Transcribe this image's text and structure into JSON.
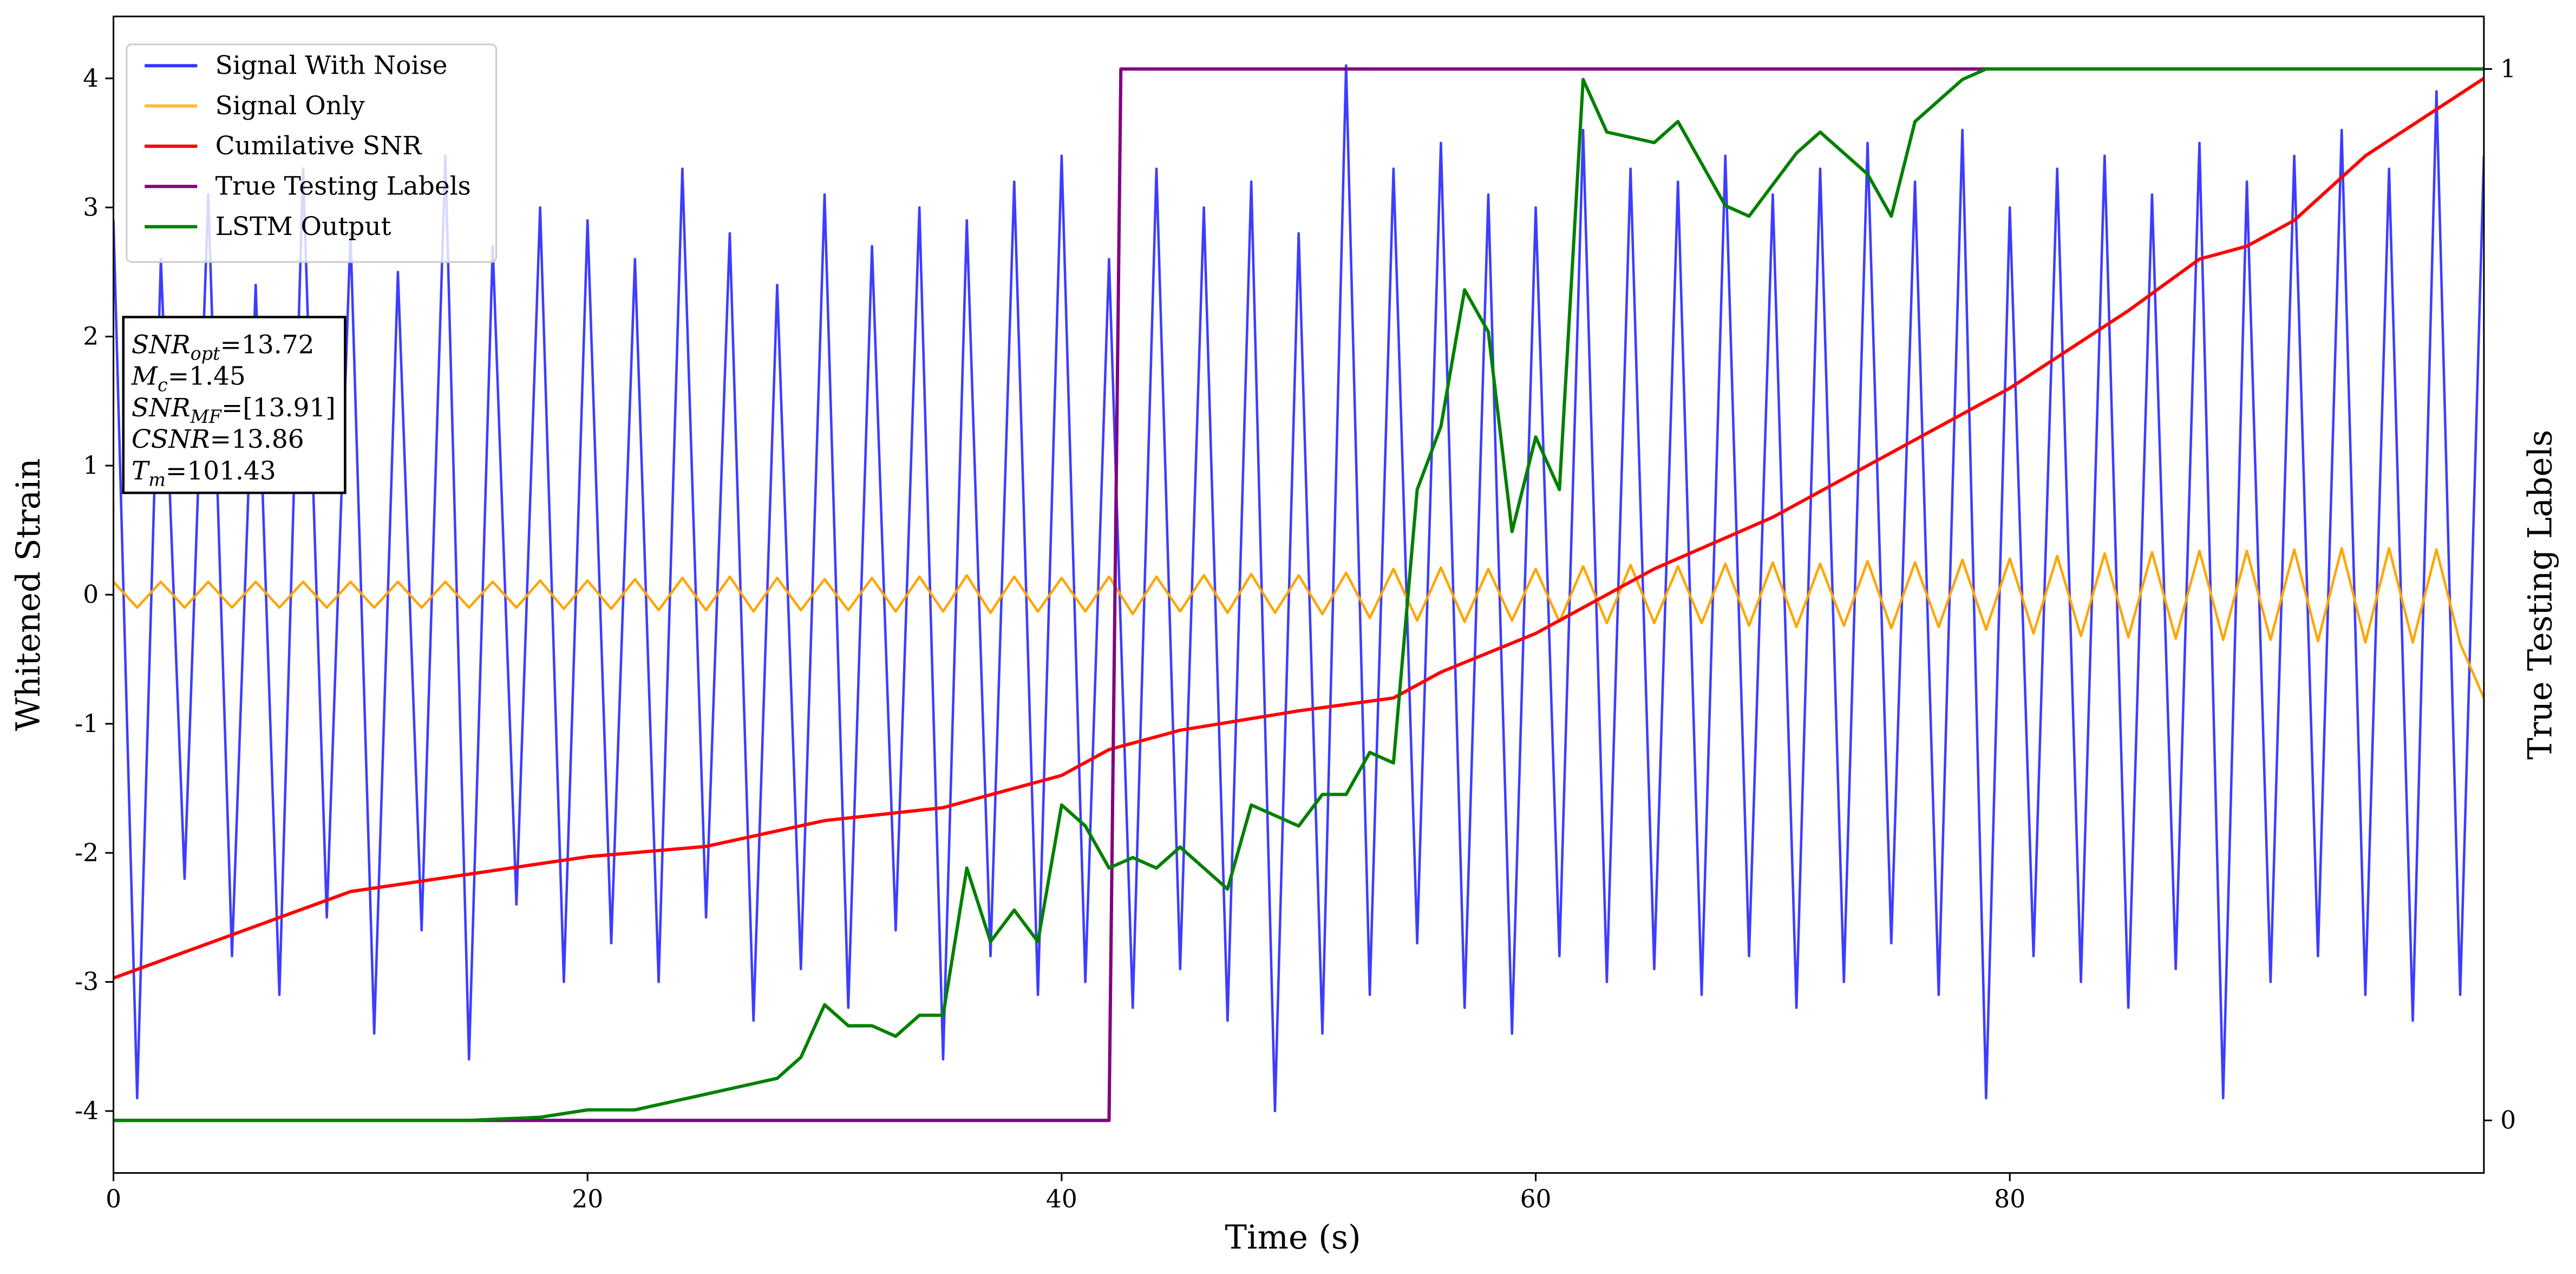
{
  "chart_data": {
    "type": "line",
    "xlabel": "Time (s)",
    "ylabel": "Whitened Strain",
    "y2label": "True Testing Labels",
    "xlim": [
      0,
      100
    ],
    "ylim": [
      -4.48,
      4.48
    ],
    "y2lim": [
      -0.05,
      1.05
    ],
    "xticks": [
      0,
      20,
      40,
      60,
      80
    ],
    "yticks": [
      -4,
      -3,
      -2,
      -1,
      0,
      1,
      2,
      3,
      4
    ],
    "y2ticks": [
      0,
      1
    ],
    "legend": "upper left",
    "annotation": [
      {
        "main": "SNR",
        "sub": "opt",
        "rest": "=13.72"
      },
      {
        "main": "M",
        "sub": "c",
        "rest": "=1.45"
      },
      {
        "main": "SNR",
        "sub": "MF",
        "rest": "=[13.91]"
      },
      {
        "main": "CSNR",
        "sub": "",
        "rest": "=13.86"
      },
      {
        "main": "T",
        "sub": "m",
        "rest": "=101.43"
      }
    ],
    "series": [
      {
        "name": "Signal With Noise",
        "color": "#3333ff",
        "axis": "y",
        "x": [
          0,
          1,
          2,
          3,
          4,
          5,
          6,
          7,
          8,
          9,
          10,
          11,
          12,
          13,
          14,
          15,
          16,
          17,
          18,
          19,
          20,
          21,
          22,
          23,
          24,
          25,
          26,
          27,
          28,
          29,
          30,
          31,
          32,
          33,
          34,
          35,
          36,
          37,
          38,
          39,
          40,
          41,
          42,
          43,
          44,
          45,
          46,
          47,
          48,
          49,
          50,
          51,
          52,
          53,
          54,
          55,
          56,
          57,
          58,
          59,
          60,
          61,
          62,
          63,
          64,
          65,
          66,
          67,
          68,
          69,
          70,
          71,
          72,
          73,
          74,
          75,
          76,
          77,
          78,
          79,
          80,
          81,
          82,
          83,
          84,
          85,
          86,
          87,
          88,
          89,
          90,
          91,
          92,
          93,
          94,
          95,
          96,
          97,
          98,
          99,
          100
        ],
        "values": [
          2.9,
          -3.9,
          2.6,
          -2.2,
          3.1,
          -2.8,
          2.4,
          -3.1,
          3.3,
          -2.5,
          2.8,
          -3.4,
          2.5,
          -2.6,
          3.4,
          -3.6,
          2.7,
          -2.4,
          3.0,
          -3.0,
          2.9,
          -2.7,
          2.6,
          -3.0,
          3.3,
          -2.5,
          2.8,
          -3.3,
          2.4,
          -2.9,
          3.1,
          -3.2,
          2.7,
          -2.6,
          3.0,
          -3.6,
          2.9,
          -2.8,
          3.2,
          -3.1,
          3.4,
          -3.0,
          2.6,
          -3.2,
          3.3,
          -2.9,
          3.0,
          -3.3,
          3.2,
          -4.0,
          2.8,
          -3.4,
          4.1,
          -3.1,
          3.3,
          -2.7,
          3.5,
          -3.2,
          3.1,
          -3.4,
          3.0,
          -2.8,
          3.6,
          -3.0,
          3.3,
          -2.9,
          3.2,
          -3.1,
          3.4,
          -2.8,
          3.1,
          -3.2,
          3.3,
          -3.0,
          3.5,
          -2.7,
          3.2,
          -3.1,
          3.6,
          -3.9,
          3.0,
          -2.8,
          3.3,
          -3.0,
          3.4,
          -3.2,
          3.1,
          -2.9,
          3.5,
          -3.9,
          3.2,
          -3.0,
          3.4,
          -2.8,
          3.6,
          -3.1,
          3.3,
          -3.3,
          3.9,
          -3.1,
          3.4
        ]
      },
      {
        "name": "Signal Only",
        "color": "#ffa500",
        "axis": "y",
        "x": [
          0,
          1,
          2,
          3,
          4,
          5,
          6,
          7,
          8,
          9,
          10,
          11,
          12,
          13,
          14,
          15,
          16,
          17,
          18,
          19,
          20,
          21,
          22,
          23,
          24,
          25,
          26,
          27,
          28,
          29,
          30,
          31,
          32,
          33,
          34,
          35,
          36,
          37,
          38,
          39,
          40,
          41,
          42,
          43,
          44,
          45,
          46,
          47,
          48,
          49,
          50,
          51,
          52,
          53,
          54,
          55,
          56,
          57,
          58,
          59,
          60,
          61,
          62,
          63,
          64,
          65,
          66,
          67,
          68,
          69,
          70,
          71,
          72,
          73,
          74,
          75,
          76,
          77,
          78,
          79,
          80,
          81,
          82,
          83,
          84,
          85,
          86,
          87,
          88,
          89,
          90,
          91,
          92,
          93,
          94,
          95,
          96,
          97,
          98,
          99,
          100
        ],
        "values": [
          0.1,
          -0.1,
          0.1,
          -0.1,
          0.1,
          -0.1,
          0.1,
          -0.1,
          0.1,
          -0.1,
          0.1,
          -0.1,
          0.1,
          -0.1,
          0.1,
          -0.1,
          0.1,
          -0.1,
          0.11,
          -0.11,
          0.11,
          -0.11,
          0.12,
          -0.12,
          0.13,
          -0.12,
          0.14,
          -0.13,
          0.13,
          -0.12,
          0.12,
          -0.12,
          0.13,
          -0.13,
          0.14,
          -0.13,
          0.15,
          -0.14,
          0.14,
          -0.13,
          0.13,
          -0.13,
          0.14,
          -0.15,
          0.14,
          -0.13,
          0.15,
          -0.14,
          0.16,
          -0.14,
          0.15,
          -0.15,
          0.17,
          -0.18,
          0.2,
          -0.2,
          0.21,
          -0.21,
          0.2,
          -0.2,
          0.2,
          -0.21,
          0.22,
          -0.22,
          0.23,
          -0.22,
          0.22,
          -0.22,
          0.24,
          -0.24,
          0.25,
          -0.25,
          0.24,
          -0.24,
          0.26,
          -0.26,
          0.25,
          -0.25,
          0.27,
          -0.27,
          0.28,
          -0.3,
          0.3,
          -0.32,
          0.32,
          -0.33,
          0.33,
          -0.34,
          0.34,
          -0.35,
          0.34,
          -0.35,
          0.35,
          -0.36,
          0.36,
          -0.37,
          0.36,
          -0.37,
          0.35,
          -0.38,
          -0.8
        ]
      },
      {
        "name": "Cumilative SNR",
        "color": "#ff0000",
        "axis": "y",
        "x": [
          0,
          10,
          20,
          25,
          30,
          35,
          40,
          42,
          45,
          50,
          54,
          56,
          60,
          65,
          70,
          75,
          80,
          85,
          88,
          90,
          92,
          95,
          100
        ],
        "values": [
          -2.97,
          -2.3,
          -2.03,
          -1.95,
          -1.75,
          -1.65,
          -1.4,
          -1.2,
          -1.05,
          -0.9,
          -0.8,
          -0.6,
          -0.3,
          0.2,
          0.6,
          1.1,
          1.6,
          2.2,
          2.6,
          2.7,
          2.9,
          3.4,
          4.0
        ]
      },
      {
        "name": "True Testing Labels",
        "color": "#800080",
        "axis": "y2",
        "x": [
          0,
          42,
          42.5,
          100
        ],
        "values": [
          0,
          0,
          1,
          1
        ]
      },
      {
        "name": "LSTM Output",
        "color": "#008000",
        "axis": "y2",
        "x": [
          0,
          15,
          18,
          20,
          22,
          24,
          26,
          28,
          29,
          30,
          31,
          32,
          33,
          34,
          35,
          36,
          37,
          38,
          39,
          40,
          41,
          42,
          43,
          44,
          45,
          46,
          47,
          48,
          49,
          50,
          51,
          52,
          53,
          54,
          55,
          56,
          57,
          58,
          59,
          60,
          61,
          62,
          63,
          65,
          66,
          68,
          69,
          70,
          71,
          72,
          74,
          75,
          76,
          77,
          78,
          79,
          80,
          100
        ],
        "values": [
          0,
          0,
          0.003,
          0.01,
          0.01,
          0.02,
          0.03,
          0.04,
          0.06,
          0.11,
          0.09,
          0.09,
          0.08,
          0.1,
          0.1,
          0.24,
          0.17,
          0.2,
          0.17,
          0.3,
          0.28,
          0.24,
          0.25,
          0.24,
          0.26,
          0.24,
          0.22,
          0.3,
          0.29,
          0.28,
          0.31,
          0.31,
          0.35,
          0.34,
          0.6,
          0.66,
          0.79,
          0.75,
          0.56,
          0.65,
          0.6,
          0.99,
          0.94,
          0.93,
          0.95,
          0.87,
          0.86,
          0.89,
          0.92,
          0.94,
          0.9,
          0.86,
          0.95,
          0.97,
          0.99,
          1.0,
          1.0,
          1.0
        ]
      }
    ]
  }
}
